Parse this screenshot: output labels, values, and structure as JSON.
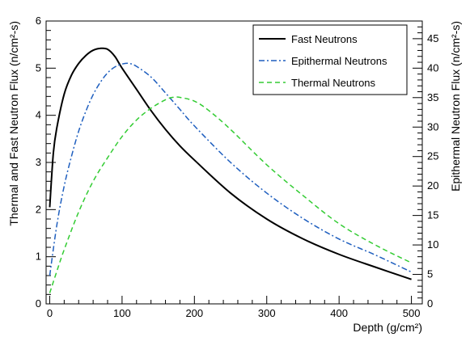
{
  "chart_data": {
    "type": "line",
    "xlabel": "Depth (g/cm²)",
    "ylabel_left": "Thermal and Fast Neutron Flux (n/cm²-s)",
    "ylabel_right": "Epithermal Neutron Flux (n/cm²-s)",
    "xlim": [
      -5,
      515
    ],
    "ylim_left": [
      0,
      6
    ],
    "ylim_right": [
      0,
      48
    ],
    "x_ticks": [
      0,
      100,
      200,
      300,
      400,
      500
    ],
    "y_left_ticks": [
      0,
      1,
      2,
      3,
      4,
      5,
      6
    ],
    "y_right_ticks": [
      0,
      5,
      10,
      15,
      20,
      25,
      30,
      35,
      40,
      45
    ],
    "grid": false,
    "legend_position": "top-right",
    "series": [
      {
        "name": "Fast Neutrons",
        "axis": "left",
        "color": "#000000",
        "style": "solid",
        "x": [
          0,
          5,
          10,
          20,
          30,
          40,
          50,
          60,
          70,
          80,
          90,
          100,
          120,
          140,
          160,
          180,
          200,
          250,
          300,
          350,
          400,
          450,
          500
        ],
        "y": [
          2.05,
          3.2,
          3.75,
          4.45,
          4.85,
          5.1,
          5.27,
          5.38,
          5.42,
          5.4,
          5.25,
          5.0,
          4.55,
          4.1,
          3.7,
          3.35,
          3.05,
          2.35,
          1.8,
          1.38,
          1.05,
          0.78,
          0.52
        ]
      },
      {
        "name": "Epithermal Neutrons",
        "axis": "right",
        "color": "#1f5fbf",
        "style": "dashdot",
        "x": [
          0,
          10,
          20,
          30,
          40,
          50,
          60,
          70,
          80,
          90,
          100,
          110,
          120,
          140,
          160,
          180,
          200,
          250,
          300,
          350,
          400,
          450,
          500
        ],
        "y": [
          4.8,
          13.5,
          20.0,
          25.0,
          29.3,
          32.7,
          35.5,
          37.6,
          39.2,
          40.2,
          40.7,
          40.8,
          40.3,
          38.5,
          35.8,
          33.0,
          30.2,
          24.0,
          18.8,
          14.5,
          11.0,
          8.3,
          5.4
        ]
      },
      {
        "name": "Thermal Neutrons",
        "axis": "left",
        "color": "#33cc33",
        "style": "dashed",
        "x": [
          0,
          10,
          20,
          40,
          60,
          80,
          100,
          120,
          140,
          160,
          170,
          180,
          200,
          220,
          250,
          300,
          350,
          400,
          450,
          500
        ],
        "y": [
          0.23,
          0.7,
          1.15,
          1.95,
          2.6,
          3.1,
          3.55,
          3.9,
          4.15,
          4.33,
          4.38,
          4.38,
          4.3,
          4.1,
          3.7,
          2.95,
          2.3,
          1.7,
          1.25,
          0.87
        ]
      }
    ]
  }
}
